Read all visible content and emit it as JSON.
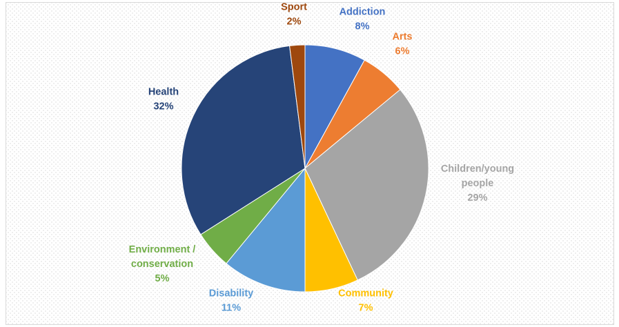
{
  "chart_data": {
    "type": "pie",
    "slices": [
      {
        "label": "Addiction",
        "value": 8,
        "value_label": "8%",
        "color": "#4472c4"
      },
      {
        "label": "Arts",
        "value": 6,
        "value_label": "6%",
        "color": "#ed7d31"
      },
      {
        "label": "Children/young people",
        "label_lines": [
          "Children/young",
          "people"
        ],
        "value": 29,
        "value_label": "29%",
        "color": "#a5a5a5"
      },
      {
        "label": "Community",
        "value": 7,
        "value_label": "7%",
        "color": "#ffc000"
      },
      {
        "label": "Disability",
        "value": 11,
        "value_label": "11%",
        "color": "#5b9bd5"
      },
      {
        "label": "Environment / conservation",
        "label_lines": [
          "Environment /",
          "conservation"
        ],
        "value": 5,
        "value_label": "5%",
        "color": "#70ad47"
      },
      {
        "label": "Health",
        "value": 32,
        "value_label": "32%",
        "color": "#264478"
      },
      {
        "label": "Sport",
        "value": 2,
        "value_label": "2%",
        "color": "#9e480e"
      }
    ]
  }
}
